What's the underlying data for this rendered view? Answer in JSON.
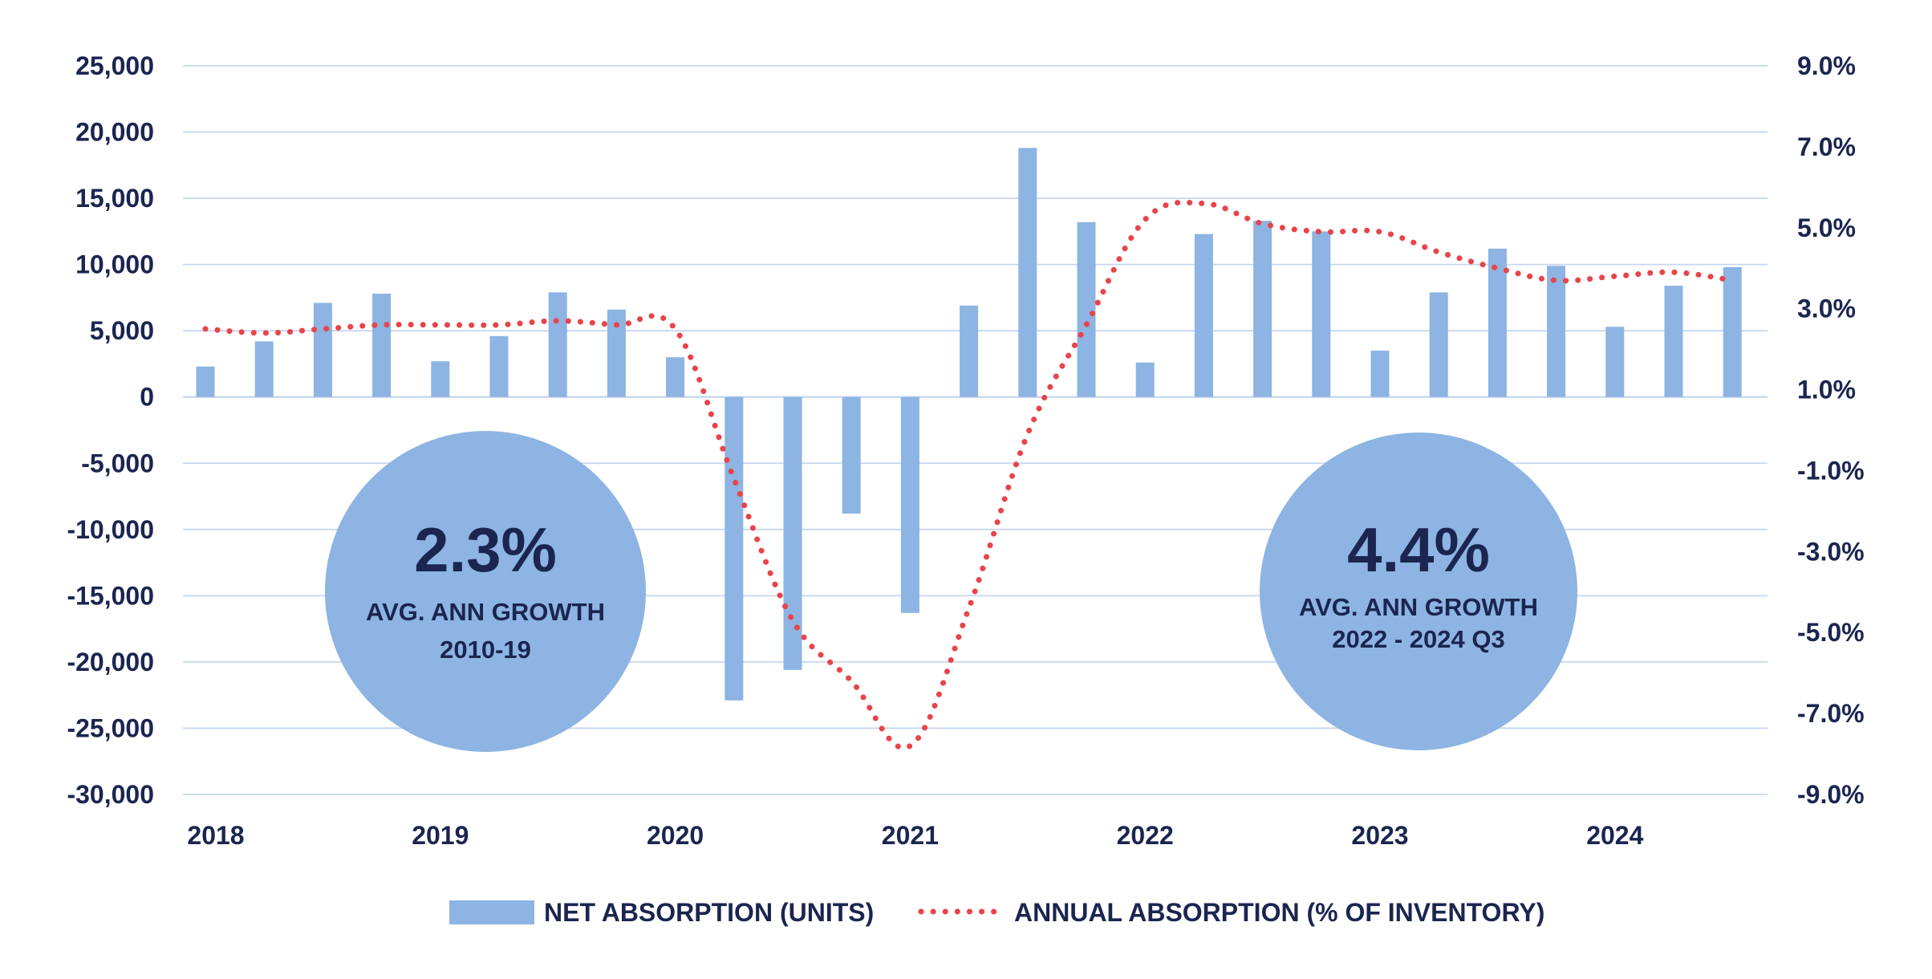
{
  "chart_data": {
    "type": "bar",
    "title": "",
    "xlabel": "",
    "ylabel": "",
    "x_tick_labels": [
      "2018",
      "2019",
      "2020",
      "2021",
      "2022",
      "2023",
      "2024"
    ],
    "ylim": [
      -30000,
      25000
    ],
    "y_ticks": [
      25000,
      20000,
      15000,
      10000,
      5000,
      0,
      -5000,
      -10000,
      -15000,
      -20000,
      -25000,
      -30000
    ],
    "y_tick_labels": [
      "25,000",
      "20,000",
      "15,000",
      "10,000",
      "5,000",
      "0",
      "-5,000",
      "-10,000",
      "-15,000",
      "-20,000",
      "-25,000",
      "-30,000"
    ],
    "y2lim": [
      -9.0,
      9.0
    ],
    "y2_ticks": [
      9.0,
      7.0,
      5.0,
      3.0,
      1.0,
      -1.0,
      -3.0,
      -5.0,
      -7.0,
      -9.0
    ],
    "y2_tick_labels": [
      "9.0%",
      "7.0%",
      "5.0%",
      "3.0%",
      "1.0%",
      "-1.0%",
      "-3.0%",
      "-5.0%",
      "-7.0%",
      "-9.0%"
    ],
    "grid": true,
    "legend_position": "bottom",
    "categories": [
      "2018 Q1",
      "2018 Q2",
      "2018 Q3",
      "2018 Q4",
      "2019 Q1",
      "2019 Q2",
      "2019 Q3",
      "2019 Q4",
      "2020 Q1",
      "2020 Q2",
      "2020 Q3",
      "2020 Q4",
      "2021 Q1",
      "2021 Q2",
      "2021 Q3",
      "2021 Q4",
      "2022 Q1",
      "2022 Q2",
      "2022 Q3",
      "2022 Q4",
      "2023 Q1",
      "2023 Q2",
      "2023 Q3",
      "2023 Q4",
      "2024 Q1",
      "2024 Q2",
      "2024 Q3"
    ],
    "series": [
      {
        "name": "NET ABSORPTION (UNITS)",
        "type": "bar",
        "axis": "left",
        "color": "#8db4e2",
        "values": [
          2300,
          4200,
          7100,
          7800,
          2700,
          4600,
          7900,
          6600,
          3000,
          -22900,
          -20600,
          -8800,
          -16300,
          6900,
          18800,
          13200,
          2600,
          12300,
          13300,
          12500,
          3500,
          7900,
          11200,
          9900,
          5300,
          8400,
          9800
        ]
      },
      {
        "name": "ANNUAL ABSORPTION (% OF INVENTORY)",
        "type": "line",
        "axis": "right",
        "style": "dotted",
        "color": "#e8444a",
        "values": [
          2.5,
          2.4,
          2.5,
          2.6,
          2.6,
          2.6,
          2.7,
          2.6,
          2.5,
          -1.2,
          -4.7,
          -6.2,
          -7.8,
          -4.4,
          -0.1,
          2.6,
          5.2,
          5.6,
          5.1,
          4.9,
          4.9,
          4.4,
          4.0,
          3.7,
          3.8,
          3.9,
          3.7
        ]
      }
    ],
    "annotations": [
      {
        "value": "2.3%",
        "line1": "AVG. ANN GROWTH",
        "line2": "2010-19"
      },
      {
        "value": "4.4%",
        "line1": "AVG. ANN GROWTH",
        "line2": "2022 - 2024 Q3"
      }
    ]
  },
  "colors": {
    "axis_text": "#1b2550",
    "grid": "#c7d7ee",
    "bars": "#8db4e2",
    "line": "#e8444a",
    "circle": "#8db4e2"
  }
}
